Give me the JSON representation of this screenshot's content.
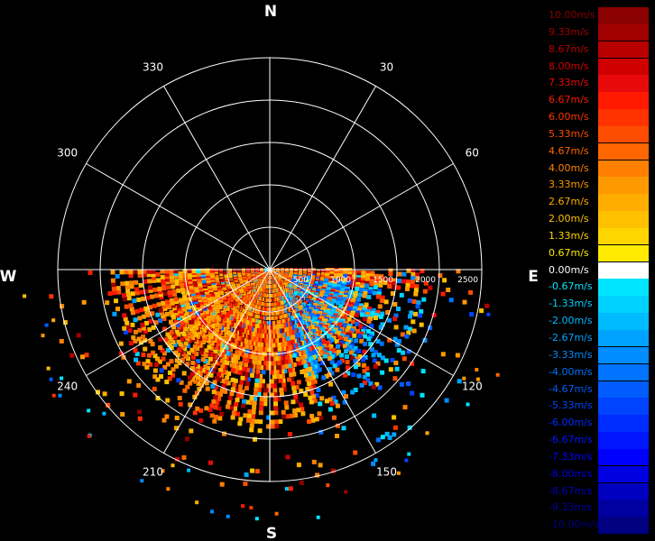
{
  "chart_data": {
    "type": "polar-radar",
    "quantity": "radial velocity",
    "units": "m/s",
    "cardinal_labels": {
      "north": "N",
      "south": "S",
      "east": "E",
      "west": "W"
    },
    "azimuth_labels": [
      {
        "deg": 30,
        "label": "30"
      },
      {
        "deg": 60,
        "label": "60"
      },
      {
        "deg": 120,
        "label": "120"
      },
      {
        "deg": 150,
        "label": "150"
      },
      {
        "deg": 210,
        "label": "210"
      },
      {
        "deg": 240,
        "label": "240"
      },
      {
        "deg": 300,
        "label": "300"
      },
      {
        "deg": 330,
        "label": "330"
      }
    ],
    "spoke_azimuths": [
      0,
      30,
      60,
      90,
      120,
      150,
      180,
      210,
      240,
      270,
      300,
      330
    ],
    "range_rings": [
      500,
      1000,
      1500,
      2000,
      2500
    ],
    "range_labels": [
      "500",
      "1000",
      "1500",
      "2000",
      "2500"
    ],
    "max_range": 2500,
    "data_sector": {
      "from_deg": 90,
      "to_deg": 270
    },
    "colorbar": [
      {
        "label": "10.00m/s",
        "color": "#8b0000"
      },
      {
        "label": "9.33m/s",
        "color": "#a00000"
      },
      {
        "label": "8.67m/s",
        "color": "#b80000"
      },
      {
        "label": "8.00m/s",
        "color": "#d00000"
      },
      {
        "label": "7.33m/s",
        "color": "#e80a0a"
      },
      {
        "label": "6.67m/s",
        "color": "#ff1a00"
      },
      {
        "label": "6.00m/s",
        "color": "#ff3300"
      },
      {
        "label": "5.33m/s",
        "color": "#ff4d00"
      },
      {
        "label": "4.67m/s",
        "color": "#ff6600"
      },
      {
        "label": "4.00m/s",
        "color": "#ff8000"
      },
      {
        "label": "3.33m/s",
        "color": "#ff9900"
      },
      {
        "label": "2.67m/s",
        "color": "#ffad00"
      },
      {
        "label": "2.00m/s",
        "color": "#ffc000"
      },
      {
        "label": "1.33m/s",
        "color": "#ffd500"
      },
      {
        "label": "0.67m/s",
        "color": "#ffea00"
      },
      {
        "label": "0.00m/s",
        "color": "#ffffff"
      },
      {
        "label": "-0.67m/s",
        "color": "#00e5ff"
      },
      {
        "label": "-1.33m/s",
        "color": "#00d2ff"
      },
      {
        "label": "-2.00m/s",
        "color": "#00bbff"
      },
      {
        "label": "-2.67m/s",
        "color": "#00a3ff"
      },
      {
        "label": "-3.33m/s",
        "color": "#008cff"
      },
      {
        "label": "-4.00m/s",
        "color": "#0073ff"
      },
      {
        "label": "-4.67m/s",
        "color": "#005cff"
      },
      {
        "label": "-5.33m/s",
        "color": "#0044ff"
      },
      {
        "label": "-6.00m/s",
        "color": "#002dff"
      },
      {
        "label": "-6.67m/s",
        "color": "#0016ff"
      },
      {
        "label": "-7.33m/s",
        "color": "#0000ff"
      },
      {
        "label": "-8.00m/s",
        "color": "#0000e0"
      },
      {
        "label": "-8.67m/s",
        "color": "#0000c0"
      },
      {
        "label": "-9.33m/s",
        "color": "#0000a0"
      },
      {
        "label": "-10.00m/s",
        "color": "#000080"
      }
    ]
  }
}
